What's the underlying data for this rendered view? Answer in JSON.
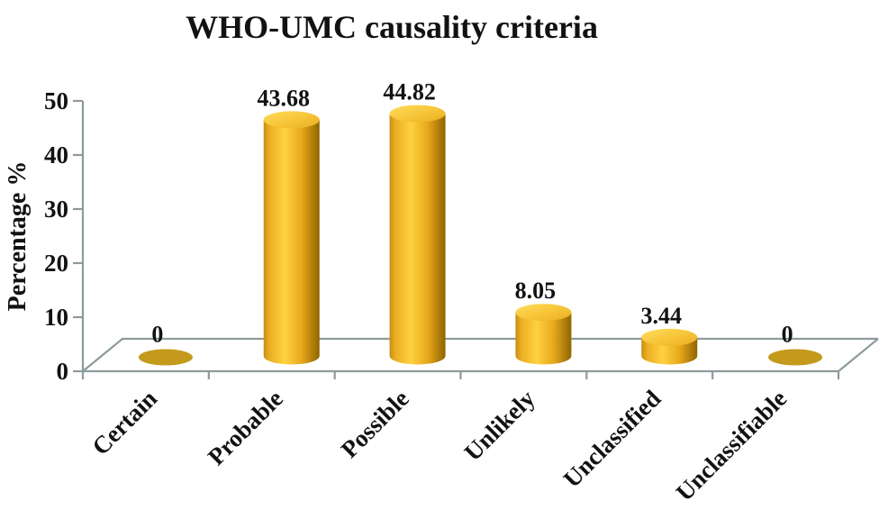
{
  "chart_data": {
    "type": "bar",
    "variant": "3d-cylinder",
    "title": "WHO-UMC causality criteria",
    "xlabel": "",
    "ylabel": "Percentage %",
    "categories": [
      "Certain",
      "Probable",
      "Possible",
      "Unlikely",
      "Unclassified",
      "Unclassifiable"
    ],
    "values": [
      0,
      43.68,
      44.82,
      8.05,
      3.44,
      0
    ],
    "value_labels": [
      "0",
      "43.68",
      "44.82",
      "8.05",
      "3.44",
      "0"
    ],
    "ylim": [
      0,
      50
    ],
    "yticks": [
      0,
      10,
      20,
      30,
      40,
      50
    ],
    "grid": false,
    "legend": false,
    "category_label_rotation_deg": -45,
    "colors": {
      "background": "#FFFFFF",
      "axis": "#8D9B9B",
      "text": "#121212",
      "bar_side_left": "#C78E12",
      "bar_side_mid": "#FFD23F",
      "bar_side_right": "#8F6500",
      "bar_top_light": "#FFDC5E",
      "bar_top_dark": "#EAAE22",
      "zero_ellipse": "#C39A1B"
    }
  }
}
